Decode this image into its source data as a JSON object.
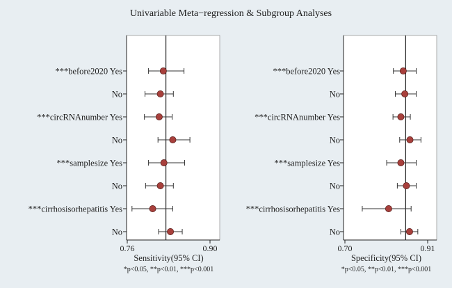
{
  "figure": {
    "title": "Univariable Meta−regression & Subgroup Analyses",
    "footnote": "*p<0.05, **p<0.01, ***p<0.001",
    "colors": {
      "background": "#e8eef2",
      "panel": "#ffffff",
      "marker": "#a8403c",
      "marker_edge": "#5a1f1c",
      "line": "#333333"
    }
  },
  "chart_data": [
    {
      "type": "forest",
      "xlabel": "Sensitivity(95% CI)",
      "xlim": [
        0.76,
        0.9
      ],
      "xticks": [
        0.76,
        0.9
      ],
      "tick_labels": [
        "0.76",
        "0.90"
      ],
      "reference_line": 0.8254,
      "grid": false,
      "legend": "none",
      "rows": [
        {
          "label": "***before2020 Yes",
          "estimate": 0.821,
          "lower": 0.796,
          "upper": 0.856
        },
        {
          "label": "No",
          "estimate": 0.816,
          "lower": 0.79,
          "upper": 0.838
        },
        {
          "label": "***circRNAnumber Yes",
          "estimate": 0.814,
          "lower": 0.789,
          "upper": 0.836
        },
        {
          "label": "No",
          "estimate": 0.837,
          "lower": 0.812,
          "upper": 0.866
        },
        {
          "label": "***samplesize Yes",
          "estimate": 0.822,
          "lower": 0.796,
          "upper": 0.857
        },
        {
          "label": "No",
          "estimate": 0.816,
          "lower": 0.791,
          "upper": 0.838
        },
        {
          "label": "***cirrhosisorhepatitis Yes",
          "estimate": 0.803,
          "lower": 0.768,
          "upper": 0.837
        },
        {
          "label": "No",
          "estimate": 0.833,
          "lower": 0.813,
          "upper": 0.853
        }
      ]
    },
    {
      "type": "forest",
      "xlabel": "Specificity(95% CI)",
      "xlim": [
        0.7,
        0.91
      ],
      "xticks": [
        0.7,
        0.91
      ],
      "tick_labels": [
        "0.70",
        "0.91"
      ],
      "reference_line": 0.8542,
      "grid": false,
      "legend": "none",
      "rows": [
        {
          "label": "***before2020 Yes",
          "estimate": 0.848,
          "lower": 0.823,
          "upper": 0.881
        },
        {
          "label": "No",
          "estimate": 0.852,
          "lower": 0.828,
          "upper": 0.881
        },
        {
          "label": "***circRNAnumber Yes",
          "estimate": 0.842,
          "lower": 0.822,
          "upper": 0.866
        },
        {
          "label": "No",
          "estimate": 0.865,
          "lower": 0.839,
          "upper": 0.893
        },
        {
          "label": "***samplesize Yes",
          "estimate": 0.842,
          "lower": 0.806,
          "upper": 0.881
        },
        {
          "label": "No",
          "estimate": 0.856,
          "lower": 0.833,
          "upper": 0.881
        },
        {
          "label": "***cirrhosisorhepatitis Yes",
          "estimate": 0.811,
          "lower": 0.744,
          "upper": 0.868
        },
        {
          "label": "No",
          "estimate": 0.864,
          "lower": 0.842,
          "upper": 0.885
        }
      ]
    }
  ]
}
